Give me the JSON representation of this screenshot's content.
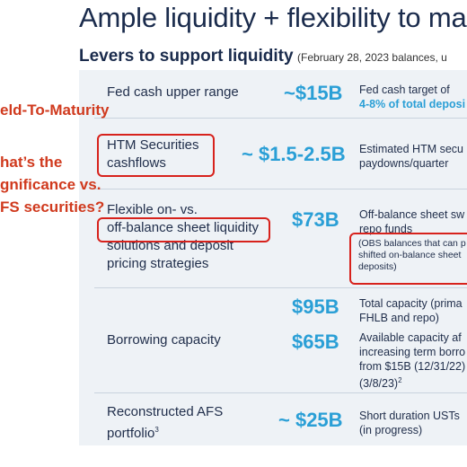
{
  "title": "Ample liquidity + flexibility to ma",
  "subtitle": {
    "main": "Levers to support liquidity",
    "note": "(February 28, 2023 balances, u"
  },
  "rows": [
    {
      "label_lines": [
        "Fed cash upper range"
      ],
      "value": "~$15B",
      "desc_lines": [
        "Fed cash target of",
        "4-8% of total deposi"
      ]
    },
    {
      "label_lines": [
        "HTM Securities",
        "cashflows"
      ],
      "value": "~ $1.5-2.5B",
      "desc_lines": [
        "Estimated HTM secu",
        "paydowns/quarter"
      ]
    },
    {
      "label_lines": [
        "Flexible on- vs.",
        "off-balance sheet liquidity",
        "solutions and deposit",
        "pricing strategies"
      ],
      "value": "$73B",
      "desc_lines": [
        "Off-balance sheet sw",
        "repo funds"
      ],
      "note_lines": [
        "(OBS balances that can p",
        "shifted on-balance sheet",
        "deposits)"
      ]
    },
    {
      "label_lines": [
        "Borrowing capacity"
      ],
      "values": [
        "$95B",
        "$65B"
      ],
      "desc_groups": [
        [
          "Total capacity (prima",
          "FHLB and repo)"
        ],
        [
          "Available capacity af",
          "increasing term borro",
          "from $15B (12/31/22)",
          "(3/8/23)"
        ]
      ],
      "desc_sup": "2"
    },
    {
      "label_lines": [
        "Reconstructed AFS",
        "portfolio"
      ],
      "label_sup": "3",
      "value": "~ $25B",
      "desc_lines": [
        "Short duration USTs",
        "(in progress)"
      ]
    }
  ],
  "annotations": {
    "line1": "eld-To-Maturity",
    "line2": "hat’s the",
    "line3": "gnificance vs.",
    "line4": "FS securities?"
  },
  "colors": {
    "accent": "#2a9fd6",
    "navy": "#1a2b4c",
    "annotation_red": "#d7221c",
    "panel": "#eef2f6"
  }
}
